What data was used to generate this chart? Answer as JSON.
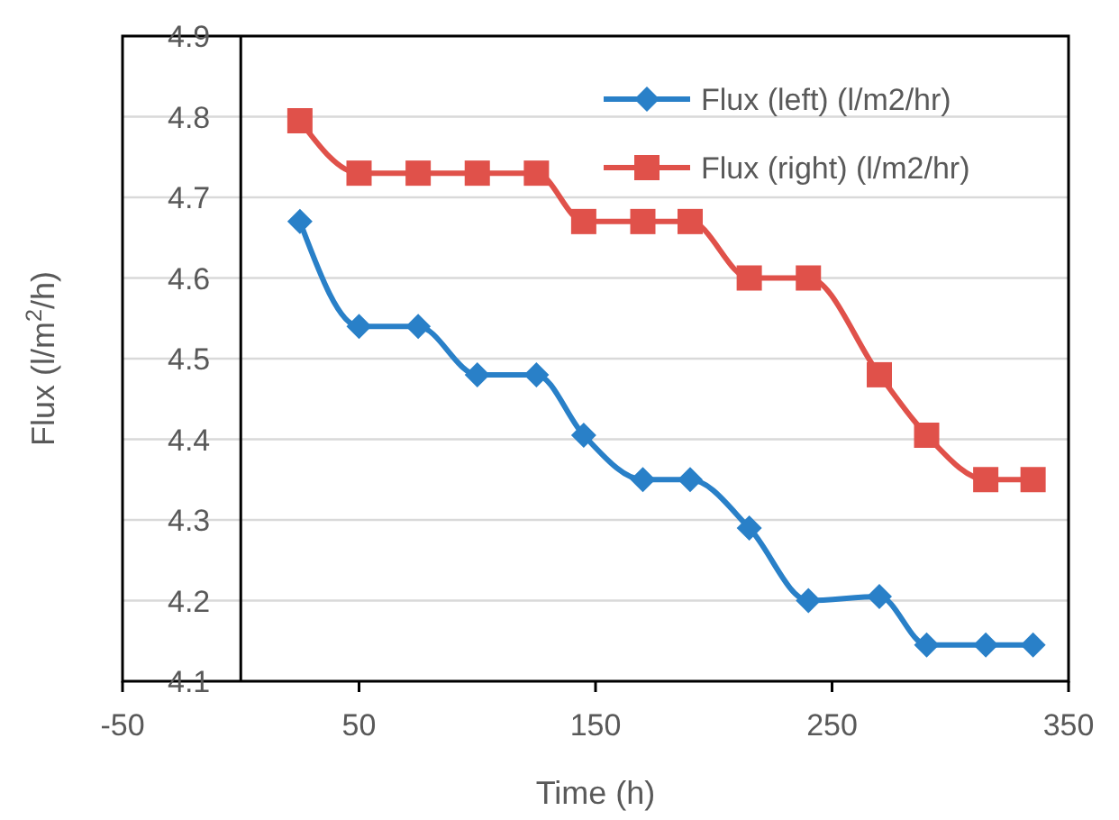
{
  "chart_data": {
    "type": "line",
    "xlabel": "Time (h)",
    "ylabel": "Flux (l/m$^{2}$/h)",
    "x": [
      25,
      50,
      75,
      100,
      125,
      145,
      170,
      190,
      215,
      240,
      270,
      290,
      315,
      335
    ],
    "series": [
      {
        "name": "Flux (left) (l/m2/hr)",
        "color": "#2980c8",
        "marker": "diamond",
        "values": [
          4.67,
          4.54,
          4.54,
          4.48,
          4.48,
          4.405,
          4.35,
          4.35,
          4.29,
          4.2,
          4.205,
          4.145,
          4.145,
          4.145
        ]
      },
      {
        "name": "Flux (right) (l/m2/hr)",
        "color": "#e0514a",
        "marker": "square",
        "values": [
          4.795,
          4.73,
          4.73,
          4.73,
          4.73,
          4.67,
          4.67,
          4.67,
          4.6,
          4.6,
          4.48,
          4.405,
          4.35,
          4.35
        ]
      }
    ],
    "xlim": [
      -50,
      350
    ],
    "xticks": [
      -50,
      50,
      150,
      250,
      350
    ],
    "ylim": [
      4.1,
      4.9
    ],
    "yticks": [
      {
        "value": 4.1,
        "label": "4.1"
      },
      {
        "value": 4.2,
        "label": "4.2"
      },
      {
        "value": 4.3,
        "label": "4.3"
      },
      {
        "value": 4.4,
        "label": "4.4"
      },
      {
        "value": 4.5,
        "label": "4.5"
      },
      {
        "value": 4.6,
        "label": "4.6"
      },
      {
        "value": 4.7,
        "label": "4.7"
      },
      {
        "value": 4.8,
        "label": "4.8"
      },
      {
        "value": 4.9,
        "label": "4.9"
      }
    ],
    "grid": "y",
    "legend": "top right",
    "line_style": "solid"
  }
}
